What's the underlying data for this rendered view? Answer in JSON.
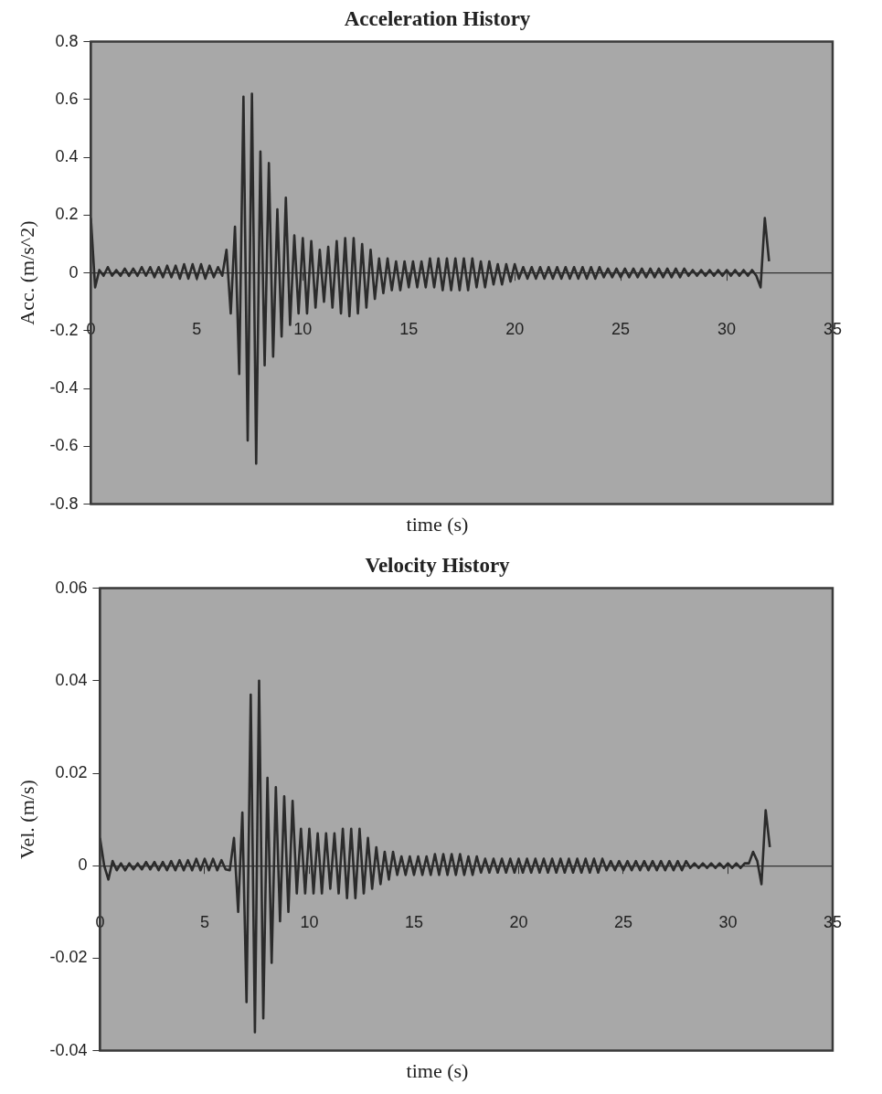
{
  "chart_data": [
    {
      "type": "line",
      "title": "Acceleration History",
      "xlabel": "time (s)",
      "ylabel": "Acc. (m/s^2)",
      "marker": "none",
      "x": [
        0,
        0.2,
        0.4,
        0.6,
        0.8,
        1,
        1.2,
        1.4,
        1.6,
        1.8,
        2,
        2.2,
        2.4,
        2.6,
        2.8,
        3,
        3.2,
        3.4,
        3.6,
        3.8,
        4,
        4.2,
        4.4,
        4.6,
        4.8,
        5,
        5.2,
        5.4,
        5.6,
        5.8,
        6,
        6.2,
        6.4,
        6.6,
        6.8,
        7,
        7.2,
        7.4,
        7.6,
        7.8,
        8,
        8.2,
        8.4,
        8.6,
        8.8,
        9,
        9.2,
        9.4,
        9.6,
        9.8,
        10,
        10.2,
        10.4,
        10.6,
        10.8,
        11,
        11.2,
        11.4,
        11.6,
        11.8,
        12,
        12.2,
        12.4,
        12.6,
        12.8,
        13,
        13.2,
        13.4,
        13.6,
        13.8,
        14,
        14.2,
        14.4,
        14.6,
        14.8,
        15,
        15.2,
        15.4,
        15.6,
        15.8,
        16,
        16.2,
        16.4,
        16.6,
        16.8,
        17,
        17.2,
        17.4,
        17.6,
        17.8,
        18,
        18.2,
        18.4,
        18.6,
        18.8,
        19,
        19.2,
        19.4,
        19.6,
        19.8,
        20,
        20.2,
        20.4,
        20.6,
        20.8,
        21,
        21.2,
        21.4,
        21.6,
        21.8,
        22,
        22.2,
        22.4,
        22.6,
        22.8,
        23,
        23.2,
        23.4,
        23.6,
        23.8,
        24,
        24.2,
        24.4,
        24.6,
        24.8,
        25,
        25.2,
        25.4,
        25.6,
        25.8,
        26,
        26.2,
        26.4,
        26.6,
        26.8,
        27,
        27.2,
        27.4,
        27.6,
        27.8,
        28,
        28.2,
        28.4,
        28.6,
        28.8,
        29,
        29.2,
        29.4,
        29.6,
        29.8,
        30,
        30.2,
        30.4,
        30.6,
        30.8,
        31,
        31.2,
        31.4,
        31.6,
        31.8,
        32
      ],
      "series": [
        {
          "color": "#2b2b2b",
          "values": [
            0.19,
            -0.05,
            0.01,
            -0.01,
            0.02,
            -0.01,
            0.01,
            -0.01,
            0.015,
            -0.01,
            0.015,
            -0.01,
            0.02,
            -0.01,
            0.02,
            -0.015,
            0.02,
            -0.015,
            0.025,
            -0.015,
            0.025,
            -0.02,
            0.03,
            -0.02,
            0.03,
            -0.02,
            0.03,
            -0.02,
            0.025,
            -0.015,
            0.02,
            -0.01,
            0.08,
            -0.14,
            0.16,
            -0.35,
            0.61,
            -0.58,
            0.62,
            -0.66,
            0.42,
            -0.32,
            0.38,
            -0.29,
            0.22,
            -0.22,
            0.26,
            -0.18,
            0.13,
            -0.14,
            0.12,
            -0.14,
            0.11,
            -0.12,
            0.08,
            -0.1,
            0.09,
            -0.12,
            0.11,
            -0.14,
            0.12,
            -0.15,
            0.12,
            -0.14,
            0.1,
            -0.12,
            0.08,
            -0.09,
            0.05,
            -0.07,
            0.05,
            -0.06,
            0.04,
            -0.06,
            0.04,
            -0.05,
            0.04,
            -0.05,
            0.04,
            -0.05,
            0.05,
            -0.05,
            0.05,
            -0.06,
            0.05,
            -0.06,
            0.05,
            -0.06,
            0.05,
            -0.06,
            0.05,
            -0.05,
            0.04,
            -0.05,
            0.04,
            -0.04,
            0.03,
            -0.04,
            0.03,
            -0.03,
            0.03,
            -0.02,
            0.02,
            -0.02,
            0.02,
            -0.02,
            0.02,
            -0.02,
            0.02,
            -0.02,
            0.02,
            -0.02,
            0.02,
            -0.02,
            0.02,
            -0.02,
            0.02,
            -0.02,
            0.02,
            -0.02,
            0.02,
            -0.015,
            0.015,
            -0.015,
            0.015,
            -0.015,
            0.015,
            -0.015,
            0.015,
            -0.015,
            0.015,
            -0.015,
            0.015,
            -0.015,
            0.015,
            -0.015,
            0.015,
            -0.015,
            0.015,
            -0.015,
            0.015,
            -0.01,
            0.01,
            -0.01,
            0.01,
            -0.01,
            0.01,
            -0.01,
            0.01,
            -0.01,
            0.01,
            -0.01,
            0.01,
            -0.01,
            0.01,
            -0.01,
            0.01,
            -0.01,
            -0.05,
            0.19,
            0.04
          ]
        }
      ],
      "xlim": [
        0,
        35
      ],
      "xticks": [
        0,
        5,
        10,
        15,
        20,
        25,
        30,
        35
      ],
      "ylim": [
        -0.8,
        0.8
      ],
      "yticks": [
        -0.8,
        -0.6,
        -0.4,
        -0.2,
        0,
        0.2,
        0.4,
        0.6,
        0.8
      ]
    },
    {
      "type": "line",
      "title": "Velocity History",
      "xlabel": "time (s)",
      "ylabel": "Vel. (m/s)",
      "marker": "none",
      "x": [
        0,
        0.2,
        0.4,
        0.6,
        0.8,
        1,
        1.2,
        1.4,
        1.6,
        1.8,
        2,
        2.2,
        2.4,
        2.6,
        2.8,
        3,
        3.2,
        3.4,
        3.6,
        3.8,
        4,
        4.2,
        4.4,
        4.6,
        4.8,
        5,
        5.2,
        5.4,
        5.6,
        5.8,
        6,
        6.2,
        6.4,
        6.6,
        6.8,
        7,
        7.2,
        7.4,
        7.6,
        7.8,
        8,
        8.2,
        8.4,
        8.6,
        8.8,
        9,
        9.2,
        9.4,
        9.6,
        9.8,
        10,
        10.2,
        10.4,
        10.6,
        10.8,
        11,
        11.2,
        11.4,
        11.6,
        11.8,
        12,
        12.2,
        12.4,
        12.6,
        12.8,
        13,
        13.2,
        13.4,
        13.6,
        13.8,
        14,
        14.2,
        14.4,
        14.6,
        14.8,
        15,
        15.2,
        15.4,
        15.6,
        15.8,
        16,
        16.2,
        16.4,
        16.6,
        16.8,
        17,
        17.2,
        17.4,
        17.6,
        17.8,
        18,
        18.2,
        18.4,
        18.6,
        18.8,
        19,
        19.2,
        19.4,
        19.6,
        19.8,
        20,
        20.2,
        20.4,
        20.6,
        20.8,
        21,
        21.2,
        21.4,
        21.6,
        21.8,
        22,
        22.2,
        22.4,
        22.6,
        22.8,
        23,
        23.2,
        23.4,
        23.6,
        23.8,
        24,
        24.2,
        24.4,
        24.6,
        24.8,
        25,
        25.2,
        25.4,
        25.6,
        25.8,
        26,
        26.2,
        26.4,
        26.6,
        26.8,
        27,
        27.2,
        27.4,
        27.6,
        27.8,
        28,
        28.2,
        28.4,
        28.6,
        28.8,
        29,
        29.2,
        29.4,
        29.6,
        29.8,
        30,
        30.2,
        30.4,
        30.6,
        30.8,
        31,
        31.2,
        31.4,
        31.6,
        31.8,
        32
      ],
      "series": [
        {
          "color": "#2b2b2b",
          "values": [
            0.006,
            0,
            -0.003,
            0.001,
            -0.001,
            0.0005,
            -0.001,
            0.0005,
            -0.0008,
            0.0005,
            -0.0008,
            0.0008,
            -0.0008,
            0.0008,
            -0.001,
            0.0008,
            -0.001,
            0.001,
            -0.001,
            0.0012,
            -0.001,
            0.0012,
            -0.001,
            0.0015,
            -0.001,
            0.0015,
            -0.001,
            0.0015,
            -0.001,
            0.0012,
            -0.0008,
            -0.001,
            0.006,
            -0.01,
            0.0115,
            -0.0295,
            0.037,
            -0.036,
            0.04,
            -0.033,
            0.019,
            -0.021,
            0.017,
            -0.012,
            0.015,
            -0.01,
            0.014,
            -0.006,
            0.008,
            -0.006,
            0.008,
            -0.006,
            0.007,
            -0.006,
            0.007,
            -0.005,
            0.007,
            -0.006,
            0.008,
            -0.007,
            0.008,
            -0.007,
            0.008,
            -0.006,
            0.006,
            -0.005,
            0.004,
            -0.004,
            0.003,
            -0.003,
            0.003,
            -0.002,
            0.002,
            -0.002,
            0.002,
            -0.002,
            0.002,
            -0.002,
            0.002,
            -0.002,
            0.0025,
            -0.002,
            0.0025,
            -0.002,
            0.0025,
            -0.002,
            0.0025,
            -0.002,
            0.002,
            -0.002,
            0.002,
            -0.0015,
            0.0015,
            -0.0015,
            0.0015,
            -0.0015,
            0.0015,
            -0.0015,
            0.0015,
            -0.0015,
            0.0015,
            -0.0015,
            0.0015,
            -0.0015,
            0.0015,
            -0.0015,
            0.0015,
            -0.0015,
            0.0015,
            -0.0015,
            0.0015,
            -0.0015,
            0.0015,
            -0.0015,
            0.0015,
            -0.0015,
            0.0015,
            -0.0015,
            0.0015,
            -0.0015,
            0.0015,
            -0.001,
            0.001,
            -0.001,
            0.001,
            -0.001,
            0.001,
            -0.001,
            0.001,
            -0.001,
            0.001,
            -0.001,
            0.001,
            -0.001,
            0.001,
            -0.001,
            0.001,
            -0.001,
            0.001,
            -0.001,
            0.001,
            -0.0005,
            0.0005,
            -0.0005,
            0.0005,
            -0.0005,
            0.0005,
            -0.0005,
            0.0005,
            -0.0005,
            0.0005,
            -0.0005,
            0.0005,
            -0.0005,
            0.0005,
            0.0005,
            0.003,
            0.001,
            -0.004,
            0.012,
            0.004
          ]
        }
      ],
      "xlim": [
        0,
        35
      ],
      "xticks": [
        0,
        5,
        10,
        15,
        20,
        25,
        30,
        35
      ],
      "ylim": [
        -0.04,
        0.06
      ],
      "yticks": [
        -0.04,
        -0.02,
        0,
        0.02,
        0.04,
        0.06
      ]
    }
  ]
}
